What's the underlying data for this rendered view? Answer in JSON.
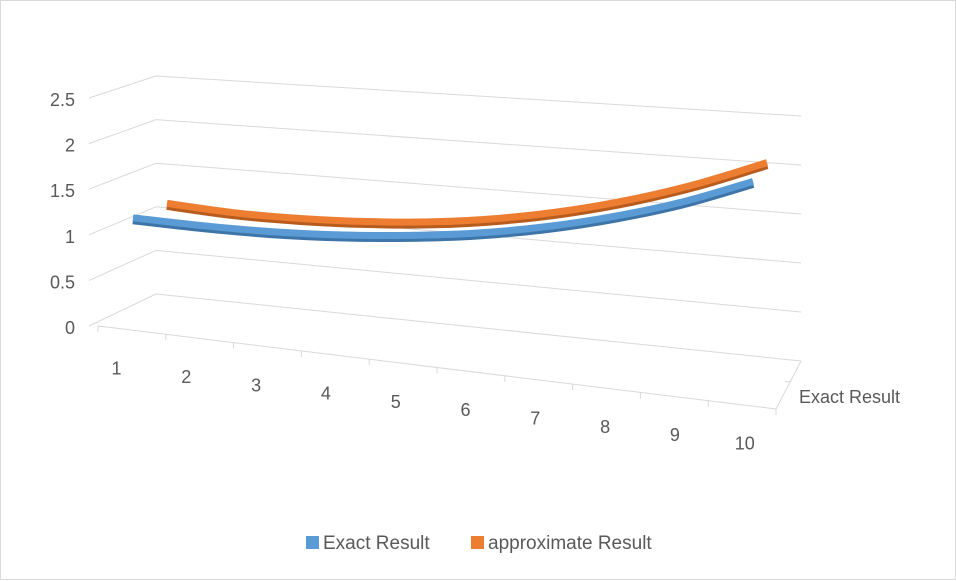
{
  "chart_data": {
    "type": "line",
    "style": "3d-line",
    "categories": [
      "1",
      "2",
      "3",
      "4",
      "5",
      "6",
      "7",
      "8",
      "9",
      "10"
    ],
    "series": [
      {
        "name": "Exact Result",
        "color": "#5b9bd5",
        "values": [
          1.0,
          0.98,
          0.98,
          1.01,
          1.07,
          1.16,
          1.29,
          1.46,
          1.67,
          1.93
        ]
      },
      {
        "name": "approximate Result",
        "color": "#ed7d31",
        "values": [
          1.05,
          1.01,
          1.01,
          1.04,
          1.1,
          1.2,
          1.34,
          1.52,
          1.74,
          2.0
        ]
      }
    ],
    "y_ticks": [
      "0",
      "0.5",
      "1",
      "1.5",
      "2",
      "2.5"
    ],
    "ylim": [
      0,
      2.5
    ],
    "depth_axis_label": "Exact Result",
    "gridlines": true,
    "legend_position": "bottom"
  }
}
